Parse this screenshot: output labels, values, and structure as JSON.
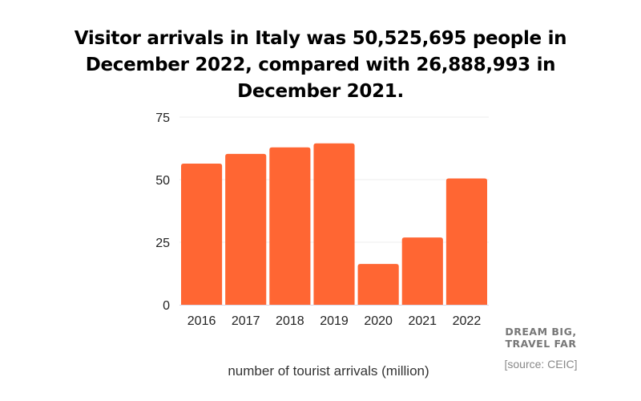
{
  "chart_data": {
    "type": "bar",
    "title": "Visitor arrivals in Italy was 50,525,695 people in December 2022, compared with 26,888,993 in December 2021.",
    "categories": [
      "2016",
      "2017",
      "2018",
      "2019",
      "2020",
      "2021",
      "2022"
    ],
    "values": [
      56.4,
      60.3,
      62.9,
      64.5,
      16.3,
      26.9,
      50.5
    ],
    "xlabel": "number of tourist arrivals (million)",
    "ylabel": "",
    "ylim": [
      0,
      75
    ],
    "yticks": [
      0,
      25,
      50,
      75
    ],
    "grid": true,
    "bar_color": "#FF6633"
  },
  "branding": {
    "line1": "DREAM BIG,",
    "line2": "TRAVEL FAR"
  },
  "source": "[source: CEIC]"
}
